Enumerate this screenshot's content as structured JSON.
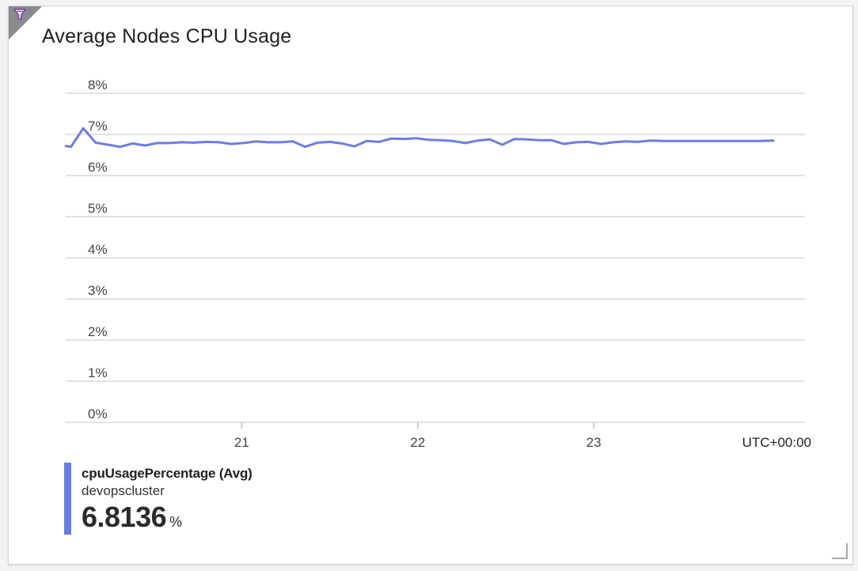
{
  "tile": {
    "title": "Average Nodes CPU Usage",
    "filter_icon": "filter-icon",
    "resize_icon": "resize-handle-icon"
  },
  "chart_data": {
    "type": "line",
    "title": "Average Nodes CPU Usage",
    "xlabel": "",
    "ylabel": "",
    "ylim": [
      0,
      8
    ],
    "yticks": [
      "0%",
      "1%",
      "2%",
      "3%",
      "4%",
      "5%",
      "6%",
      "7%",
      "8%"
    ],
    "xlim": [
      20.0,
      24.2
    ],
    "xticks": [
      {
        "value": 21,
        "label": "21"
      },
      {
        "value": 22,
        "label": "22"
      },
      {
        "value": 23,
        "label": "23"
      }
    ],
    "timezone_label": "UTC+00:00",
    "grid": true,
    "series": [
      {
        "name": "cpuUsagePercentage (Avg)",
        "color": "#6b7de3",
        "x": [
          20.0,
          20.03,
          20.1,
          20.17,
          20.24,
          20.31,
          20.38,
          20.45,
          20.52,
          20.59,
          20.66,
          20.73,
          20.8,
          20.87,
          20.94,
          21.01,
          21.08,
          21.15,
          21.22,
          21.29,
          21.36,
          21.43,
          21.5,
          21.57,
          21.64,
          21.71,
          21.78,
          21.85,
          21.92,
          21.99,
          22.06,
          22.13,
          22.2,
          22.27,
          22.34,
          22.41,
          22.48,
          22.55,
          22.62,
          22.69,
          22.76,
          22.83,
          22.9,
          22.97,
          23.04,
          23.11,
          23.18,
          23.25,
          23.32,
          23.39,
          23.46,
          23.53,
          23.6,
          23.67,
          23.74,
          23.81,
          23.88,
          23.95,
          24.02
        ],
        "values": [
          6.72,
          6.7,
          7.15,
          6.8,
          6.75,
          6.7,
          6.78,
          6.73,
          6.79,
          6.79,
          6.81,
          6.8,
          6.82,
          6.81,
          6.77,
          6.79,
          6.83,
          6.81,
          6.81,
          6.83,
          6.7,
          6.8,
          6.82,
          6.78,
          6.71,
          6.84,
          6.82,
          6.9,
          6.89,
          6.91,
          6.87,
          6.86,
          6.84,
          6.79,
          6.85,
          6.88,
          6.75,
          6.89,
          6.88,
          6.86,
          6.86,
          6.77,
          6.81,
          6.82,
          6.77,
          6.81,
          6.83,
          6.82,
          6.85,
          6.84,
          6.84,
          6.84,
          6.84,
          6.84,
          6.84,
          6.84,
          6.84,
          6.84,
          6.85
        ]
      }
    ]
  },
  "legend": {
    "series_name": "cpuUsagePercentage (Avg)",
    "resource": "devopscluster",
    "value": "6.8136",
    "unit": "%",
    "color": "#6b7de3"
  }
}
